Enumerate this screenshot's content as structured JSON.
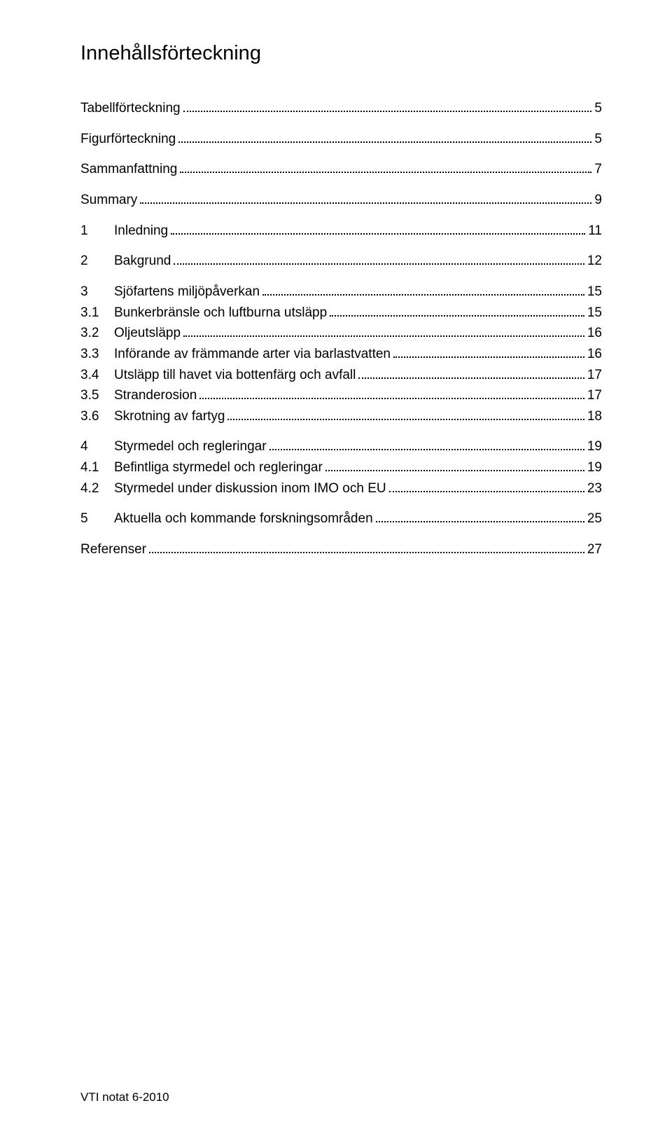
{
  "title": "Innehållsförteckning",
  "toc": [
    {
      "num": "",
      "text": "Tabellförteckning",
      "page": "5",
      "gapAfter": true
    },
    {
      "num": "",
      "text": "Figurförteckning",
      "page": "5",
      "gapAfter": true
    },
    {
      "num": "",
      "text": "Sammanfattning",
      "page": "7",
      "gapAfter": true
    },
    {
      "num": "",
      "text": "Summary",
      "page": "9",
      "gapAfter": true
    },
    {
      "num": "1",
      "text": "Inledning",
      "page": "11",
      "gapAfter": true
    },
    {
      "num": "2",
      "text": "Bakgrund",
      "page": "12",
      "gapAfter": true
    },
    {
      "num": "3",
      "text": "Sjöfartens miljöpåverkan",
      "page": "15"
    },
    {
      "num": "3.1",
      "text": "Bunkerbränsle och luftburna utsläpp",
      "page": "15"
    },
    {
      "num": "3.2",
      "text": "Oljeutsläpp",
      "page": "16"
    },
    {
      "num": "3.3",
      "text": "Införande av främmande arter via barlastvatten",
      "page": "16"
    },
    {
      "num": "3.4",
      "text": "Utsläpp till havet via bottenfärg och avfall",
      "page": "17"
    },
    {
      "num": "3.5",
      "text": "Stranderosion",
      "page": "17"
    },
    {
      "num": "3.6",
      "text": "Skrotning av fartyg",
      "page": "18",
      "gapAfter": true
    },
    {
      "num": "4",
      "text": "Styrmedel och regleringar",
      "page": "19"
    },
    {
      "num": "4.1",
      "text": "Befintliga styrmedel och regleringar",
      "page": "19"
    },
    {
      "num": "4.2",
      "text": "Styrmedel under diskussion inom IMO och EU",
      "page": "23",
      "gapAfter": true
    },
    {
      "num": "5",
      "text": "Aktuella och kommande forskningsområden",
      "page": "25",
      "gapAfter": true
    },
    {
      "num": "",
      "text": "Referenser",
      "page": "27"
    }
  ],
  "footer": "VTI notat 6-2010"
}
